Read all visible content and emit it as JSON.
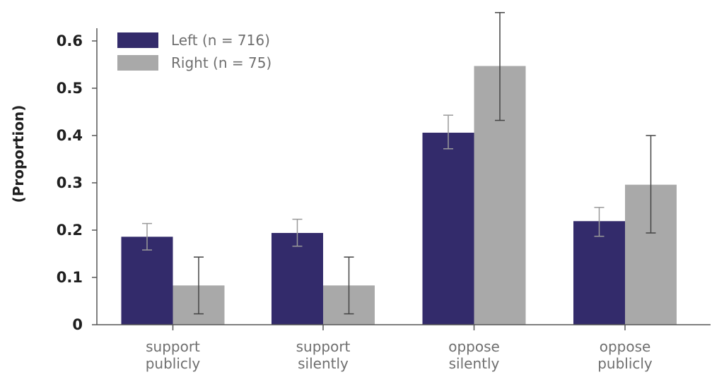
{
  "chart_data": {
    "type": "bar",
    "title": "",
    "xlabel": "",
    "ylabel": "(Proportion)",
    "ylim": [
      0,
      0.6
    ],
    "yticks": [
      "0",
      "0.1",
      "0.2",
      "0.3",
      "0.4",
      "0.5",
      "0.6"
    ],
    "categories": [
      [
        "support",
        "publicly"
      ],
      [
        "support",
        "silently"
      ],
      [
        "oppose",
        "silently"
      ],
      [
        "oppose",
        "publicly"
      ]
    ],
    "series": [
      {
        "name": "Left (n = 716)",
        "color": "#332b6b",
        "values": [
          0.186,
          0.194,
          0.406,
          0.219
        ],
        "err_low": [
          0.158,
          0.166,
          0.372,
          0.187
        ],
        "err_high": [
          0.214,
          0.223,
          0.443,
          0.248
        ]
      },
      {
        "name": "Right (n = 75)",
        "color": "#a9a9a9",
        "values": [
          0.083,
          0.083,
          0.547,
          0.296
        ],
        "err_low": [
          0.023,
          0.023,
          0.432,
          0.194
        ],
        "err_high": [
          0.143,
          0.143,
          0.66,
          0.4
        ]
      }
    ],
    "grid": false,
    "legend": "top-left"
  }
}
